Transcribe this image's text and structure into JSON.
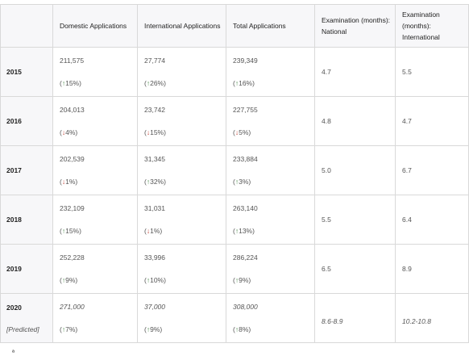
{
  "table": {
    "headers": {
      "domestic": "Domestic Applications",
      "international": "International Applications",
      "total": "Total Applications",
      "exam_national": "Examination (months): National",
      "exam_international": "Examination (months): International"
    },
    "rows": [
      {
        "year": "2015",
        "note": "",
        "domestic": "211,575",
        "domestic_change": "(↑15%)",
        "domestic_dir": "up",
        "international": "27,774",
        "international_change": "(↑26%)",
        "international_dir": "up",
        "total": "239,349",
        "total_change": "(↑16%)",
        "total_dir": "up",
        "exam_national": "4.7",
        "exam_international": "5.5"
      },
      {
        "year": "2016",
        "note": "",
        "domestic": "204,013",
        "domestic_change": "(↓4%)",
        "domestic_dir": "down",
        "international": "23,742",
        "international_change": "(↓15%)",
        "international_dir": "down",
        "total": "227,755",
        "total_change": "(↓5%)",
        "total_dir": "down",
        "exam_national": "4.8",
        "exam_international": "4.7"
      },
      {
        "year": "2017",
        "note": "",
        "domestic": "202,539",
        "domestic_change": "(↓1%)",
        "domestic_dir": "down",
        "international": "31,345",
        "international_change": "(↑32%)",
        "international_dir": "up",
        "total": "233,884",
        "total_change": "(↑3%)",
        "total_dir": "up",
        "exam_national": "5.0",
        "exam_international": "6.7"
      },
      {
        "year": "2018",
        "note": "",
        "domestic": "232,109",
        "domestic_change": "(↑15%)",
        "domestic_dir": "up",
        "international": "31,031",
        "international_change": "(↓1%)",
        "international_dir": "down",
        "total": "263,140",
        "total_change": "(↑13%)",
        "total_dir": "up",
        "exam_national": "5.5",
        "exam_international": "6.4"
      },
      {
        "year": "2019",
        "note": "",
        "domestic": "252,228",
        "domestic_change": "(↑9%)",
        "domestic_dir": "up",
        "international": "33,996",
        "international_change": "(↑10%)",
        "international_dir": "up",
        "total": "286,224",
        "total_change": "(↑9%)",
        "total_dir": "up",
        "exam_national": "6.5",
        "exam_international": "8.9"
      },
      {
        "year": "2020",
        "note": "[Predicted]",
        "domestic": "271,000",
        "domestic_change": "(↑7%)",
        "domestic_dir": "up",
        "international": "37,000",
        "international_change": "(↑9%)",
        "international_dir": "up",
        "total": "308,000",
        "total_change": "(↑8%)",
        "total_dir": "up",
        "exam_national": "8.6-8.9",
        "exam_international": "10.2-10.8"
      }
    ]
  },
  "footnote": "ª"
}
